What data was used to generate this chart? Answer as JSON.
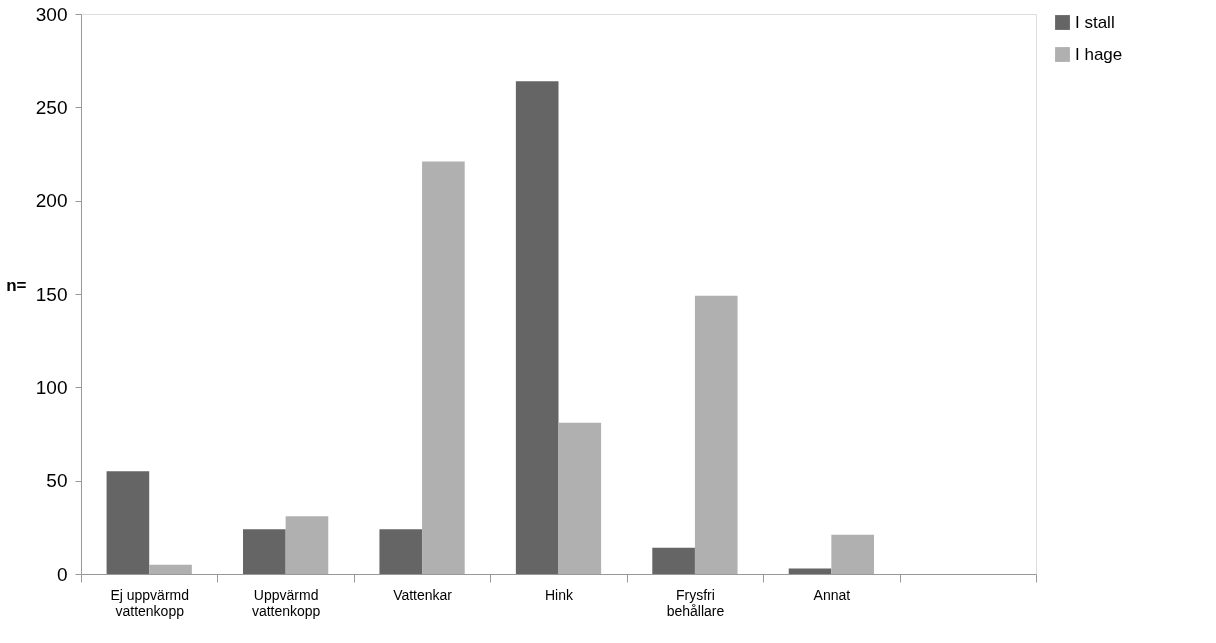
{
  "chart_data": {
    "type": "bar",
    "ylabel": "n=",
    "categories": [
      "Ej uppvärmd vattenkopp",
      "Uppvärmd vattenkopp",
      "Vattenkar",
      "Hink",
      "Frysfri behållare",
      "Annat",
      null
    ],
    "series": [
      {
        "name": "I stall",
        "color": "#656565",
        "values": [
          55,
          24,
          24,
          264,
          14,
          3,
          null
        ]
      },
      {
        "name": "I hage",
        "color": "#b0b0b0",
        "values": [
          5,
          31,
          221,
          81,
          149,
          21,
          null
        ]
      }
    ],
    "ylim": [
      0,
      300
    ],
    "yticks": [
      0,
      50,
      100,
      150,
      200,
      250,
      300
    ],
    "grid": false,
    "legend": "right"
  }
}
